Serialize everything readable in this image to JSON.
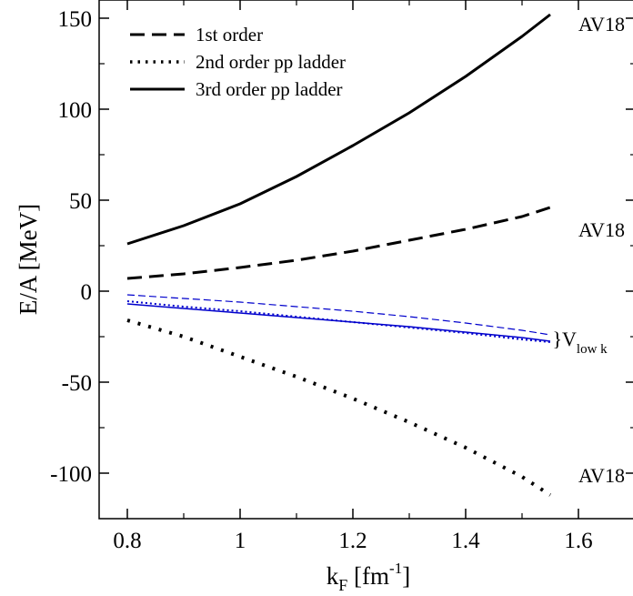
{
  "chart_data": {
    "type": "line",
    "xlabel": "k_F [fm^-1]",
    "xlabel_parts": {
      "base": "k",
      "sub": "F",
      "unit_open": " [fm",
      "sup": "-1",
      "unit_close": "]"
    },
    "ylabel": "E/A [MeV]",
    "xlim": [
      0.75,
      1.7
    ],
    "ylim": [
      -125,
      160
    ],
    "xticks": [
      0.8,
      1.0,
      1.2,
      1.4,
      1.6
    ],
    "xtick_labels": [
      "0.8",
      "1",
      "1.2",
      "1.4",
      "1.6"
    ],
    "yticks": [
      -100,
      -50,
      0,
      50,
      100,
      150
    ],
    "ytick_labels": [
      "-100",
      "-50",
      "0",
      "50",
      "100",
      "150"
    ],
    "x_minor_step": 0.1,
    "y_minor_step": 25,
    "grid": false,
    "legend_position": "top-left",
    "legend": [
      {
        "label": "1st order",
        "style": "dashed"
      },
      {
        "label": "2nd order pp ladder",
        "style": "dotted"
      },
      {
        "label": "3rd order pp ladder",
        "style": "solid"
      }
    ],
    "series": [
      {
        "group": "AV18",
        "order": "1st",
        "style": "dashed",
        "color": "#000000",
        "x": [
          0.8,
          0.9,
          1.0,
          1.1,
          1.2,
          1.3,
          1.4,
          1.5,
          1.55
        ],
        "y": [
          7,
          9.5,
          13,
          17,
          22,
          28,
          34,
          41,
          46
        ]
      },
      {
        "group": "AV18",
        "order": "2nd",
        "style": "dotted",
        "color": "#000000",
        "x": [
          0.8,
          0.9,
          1.0,
          1.1,
          1.2,
          1.3,
          1.4,
          1.5,
          1.55
        ],
        "y": [
          -16,
          -25,
          -36,
          -47,
          -59,
          -72,
          -86,
          -102,
          -112
        ]
      },
      {
        "group": "AV18",
        "order": "3rd",
        "style": "solid",
        "color": "#000000",
        "x": [
          0.8,
          0.9,
          1.0,
          1.1,
          1.2,
          1.3,
          1.4,
          1.5,
          1.55
        ],
        "y": [
          26,
          36,
          48,
          63,
          80,
          98,
          118,
          140,
          152
        ]
      },
      {
        "group": "Vlowk",
        "order": "1st",
        "style": "dashed",
        "color": "#0000cc",
        "x": [
          0.8,
          0.9,
          1.0,
          1.1,
          1.2,
          1.3,
          1.4,
          1.5,
          1.55
        ],
        "y": [
          -2,
          -4,
          -6,
          -8.5,
          -11,
          -14,
          -17.5,
          -21.5,
          -24
        ]
      },
      {
        "group": "Vlowk",
        "order": "2nd",
        "style": "dotted",
        "color": "#0000cc",
        "x": [
          0.8,
          0.9,
          1.0,
          1.1,
          1.2,
          1.3,
          1.4,
          1.5,
          1.55
        ],
        "y": [
          -5.5,
          -8.5,
          -11,
          -14,
          -17,
          -20,
          -23,
          -26.5,
          -28
        ]
      },
      {
        "group": "Vlowk",
        "order": "3rd",
        "style": "solid",
        "color": "#0000cc",
        "x": [
          0.8,
          0.9,
          1.0,
          1.1,
          1.2,
          1.3,
          1.4,
          1.5,
          1.55
        ],
        "y": [
          -7,
          -9.5,
          -12,
          -14.5,
          -17,
          -19.5,
          -22.5,
          -25.5,
          -27.5
        ]
      }
    ],
    "annotations": [
      {
        "text": "AV18",
        "x": 1.6,
        "y": 147
      },
      {
        "text": "AV18",
        "x": 1.6,
        "y": 34
      },
      {
        "text": "AV18",
        "x": 1.6,
        "y": -101
      },
      {
        "text": "}V",
        "sub": "low k",
        "x": 1.554,
        "y": -26
      }
    ]
  }
}
